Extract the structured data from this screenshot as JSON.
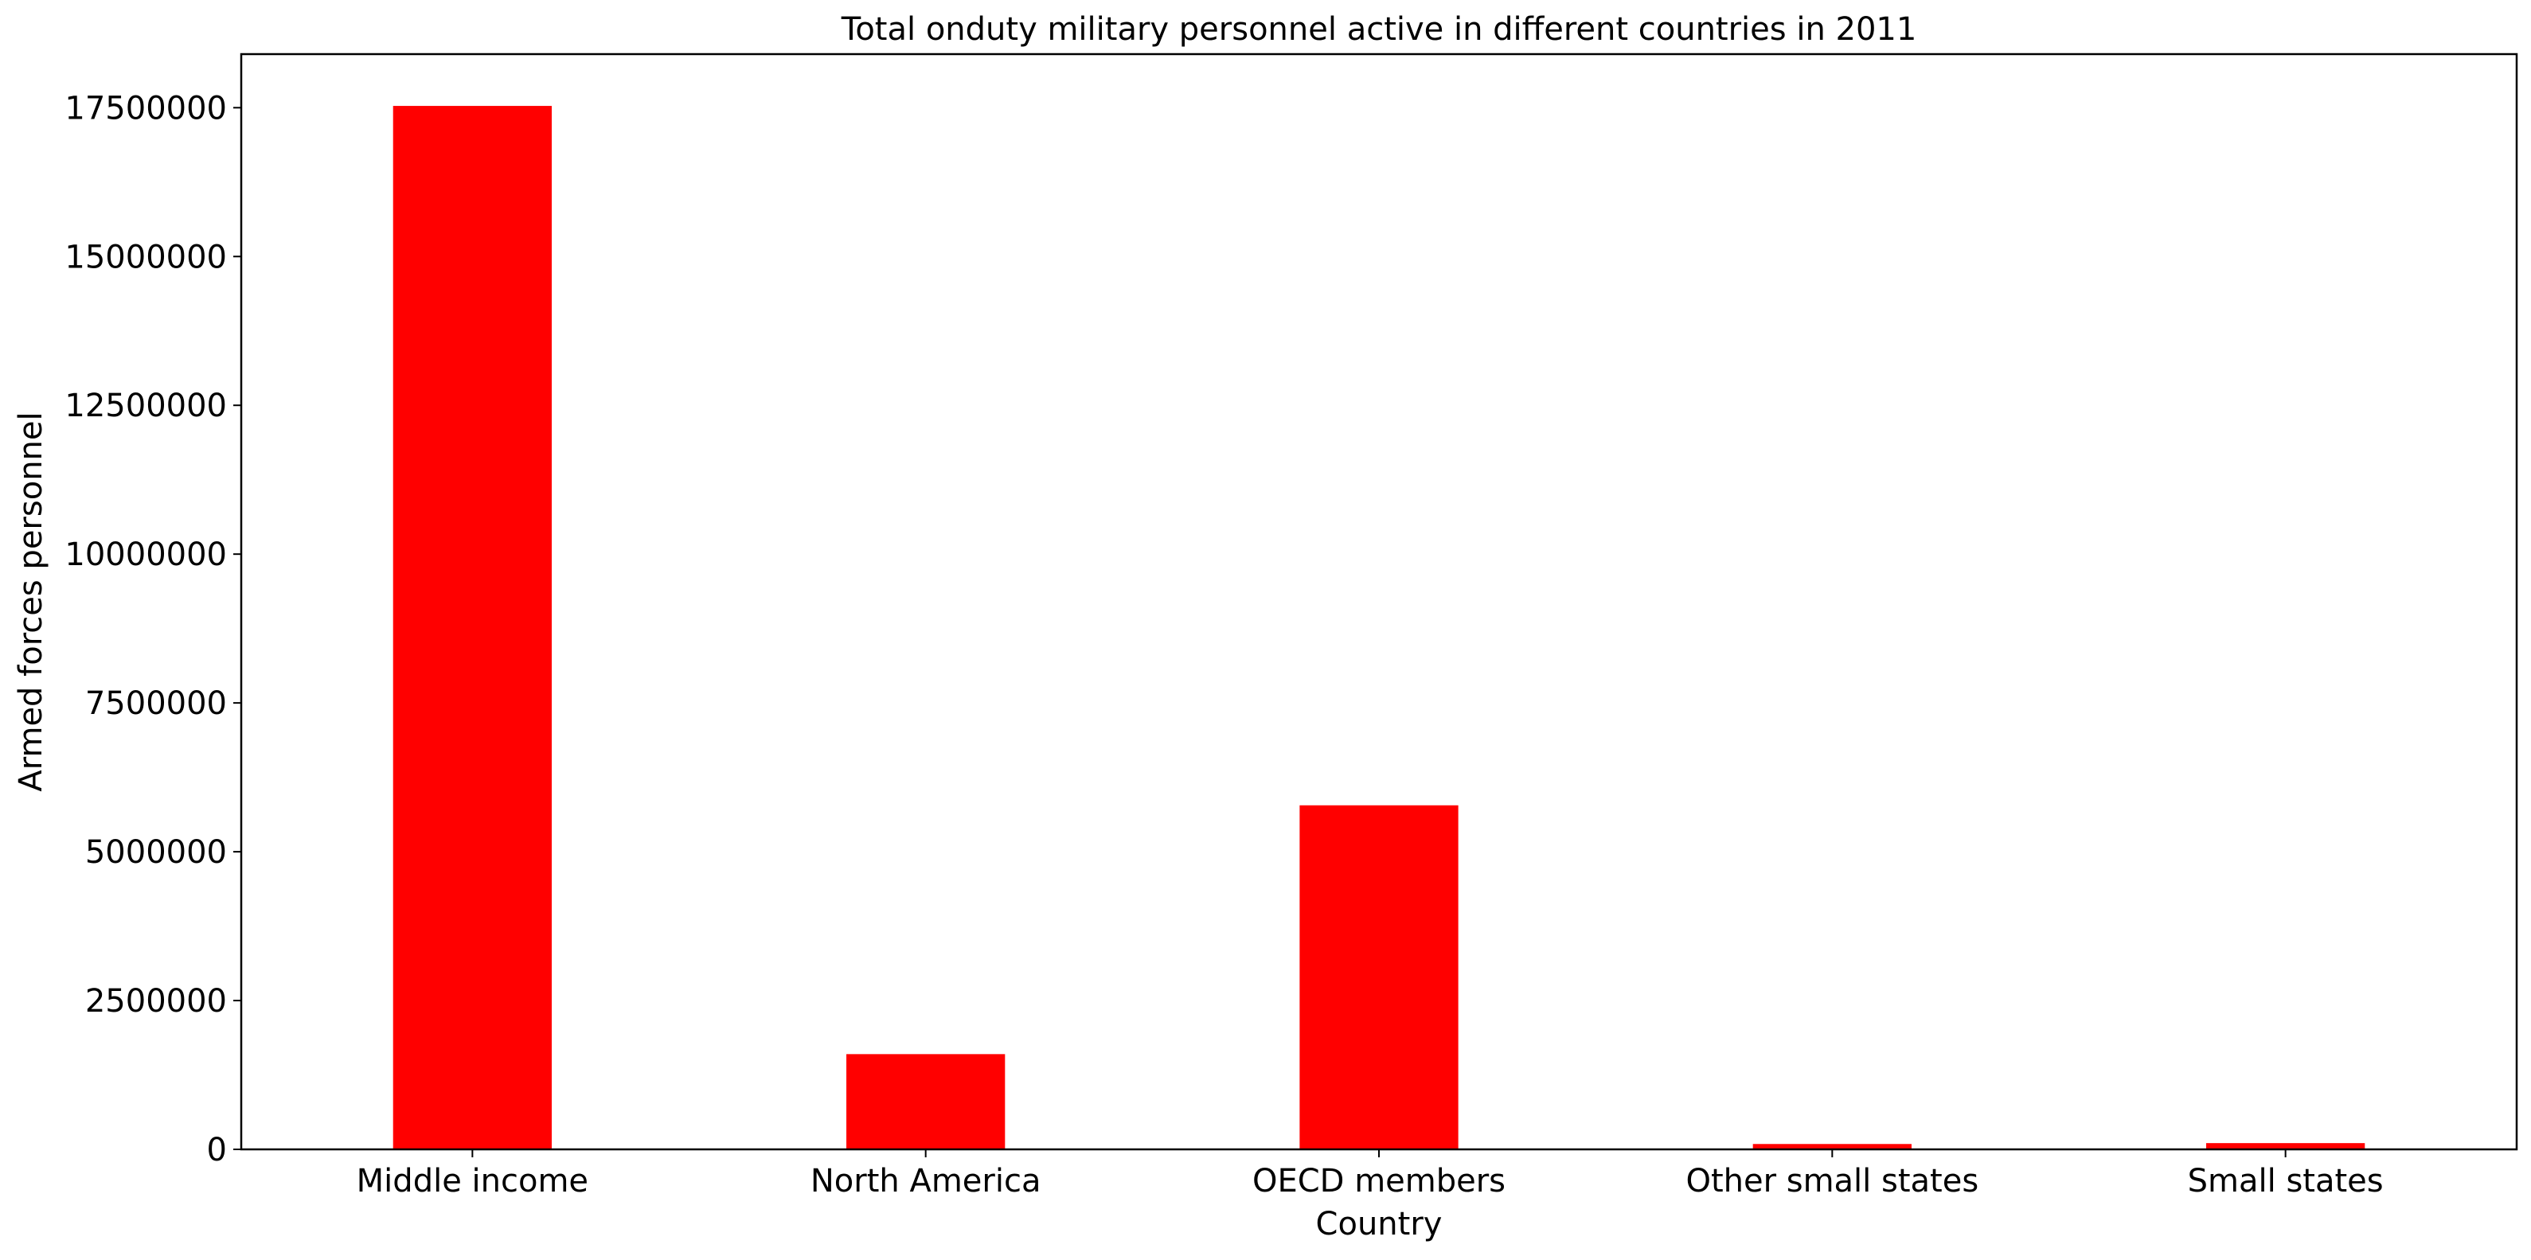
{
  "chart_data": {
    "type": "bar",
    "title": "Total onduty military personnel active in different countries in 2011",
    "xlabel": "Country",
    "ylabel": "Armed forces personnel",
    "categories": [
      "Middle income",
      "North America",
      "OECD members",
      "Other small states",
      "Small states"
    ],
    "values": [
      17530000,
      1600000,
      5780000,
      90000,
      105000
    ],
    "ylim": [
      0,
      18400000
    ],
    "yticks": [
      0,
      2500000,
      5000000,
      7500000,
      10000000,
      12500000,
      15000000,
      17500000
    ],
    "ytick_labels": [
      "0",
      "2500000",
      "5000000",
      "7500000",
      "10000000",
      "12500000",
      "15000000",
      "17500000"
    ],
    "bar_color": "#ff0000",
    "grid": false,
    "legend": "none"
  }
}
